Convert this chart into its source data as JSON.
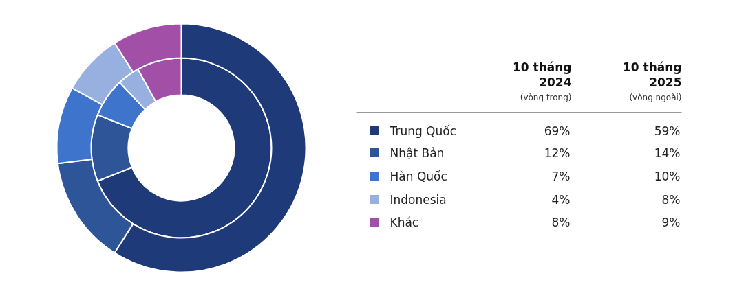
{
  "chart_data": {
    "type": "donut",
    "categories": [
      "Trung Quốc",
      "Nhật Bản",
      "Hàn Quốc",
      "Indonesia",
      "Khác"
    ],
    "colors": [
      "#1f3a78",
      "#2e5597",
      "#3f74cc",
      "#98b0e0",
      "#a24fa8"
    ],
    "series": [
      {
        "values": [
          69,
          12,
          7,
          4,
          8
        ],
        "value_labels": [
          "69%",
          "12%",
          "7%",
          "4%",
          "8%"
        ]
      },
      {
        "values": [
          59,
          14,
          10,
          8,
          9
        ],
        "value_labels": [
          "59%",
          "14%",
          "10%",
          "8%",
          "9%"
        ]
      }
    ],
    "annotations": [
      "10 tháng 2024",
      "(vòng trong)",
      "10 tháng 2025",
      "(vòng ngoài)"
    ],
    "legend": "right"
  }
}
